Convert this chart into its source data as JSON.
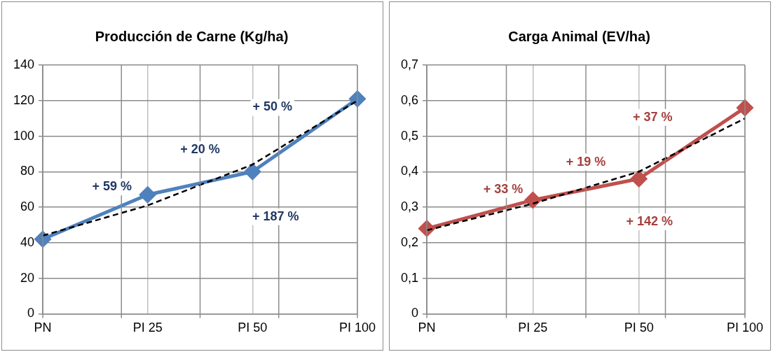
{
  "chart_data": [
    {
      "type": "line",
      "title": "Producción de Carne (Kg/ha)",
      "categories": [
        "PN",
        "PI 25",
        "PI 50",
        "PI 100"
      ],
      "series": [
        {
          "color": "#4f81bd",
          "values": [
            42,
            67,
            80,
            121
          ],
          "marker": "diamond",
          "line_style": "solid"
        },
        {
          "color": "#000000",
          "values": [
            44,
            61,
            84,
            120
          ],
          "marker": "none",
          "line_style": "dashed"
        }
      ],
      "ylim": [
        0,
        140
      ],
      "yticks": [
        0,
        20,
        40,
        60,
        80,
        100,
        120,
        140
      ],
      "grid": true,
      "legend": false,
      "annotations": [
        "+ 59 %",
        "+ 20 %",
        "+ 50 %",
        "+ 187 %"
      ]
    },
    {
      "type": "line",
      "title": "Carga Animal (EV/ha)",
      "categories": [
        "PN",
        "PI 25",
        "PI 50",
        "PI 100"
      ],
      "series": [
        {
          "color": "#c0504d",
          "values": [
            0.24,
            0.32,
            0.38,
            0.58
          ],
          "marker": "diamond",
          "line_style": "solid"
        },
        {
          "color": "#000000",
          "values": [
            0.235,
            0.31,
            0.4,
            0.55
          ],
          "marker": "none",
          "line_style": "dashed"
        }
      ],
      "ylim": [
        0,
        0.7
      ],
      "yticks": [
        0,
        {
          "value": 0.1,
          "label": "0,1"
        },
        {
          "value": 0.2,
          "label": "0,2"
        },
        {
          "value": 0.3,
          "label": "0,3"
        },
        {
          "value": 0.4,
          "label": "0,4"
        },
        {
          "value": 0.5,
          "label": "0,5"
        },
        {
          "value": 0.6,
          "label": "0,6"
        },
        {
          "value": 0.7,
          "label": "0,7"
        }
      ],
      "grid": true,
      "legend": false,
      "annotations": [
        "+ 33 %",
        "+ 19 %",
        "+ 37 %",
        "+ 142 %"
      ]
    }
  ]
}
